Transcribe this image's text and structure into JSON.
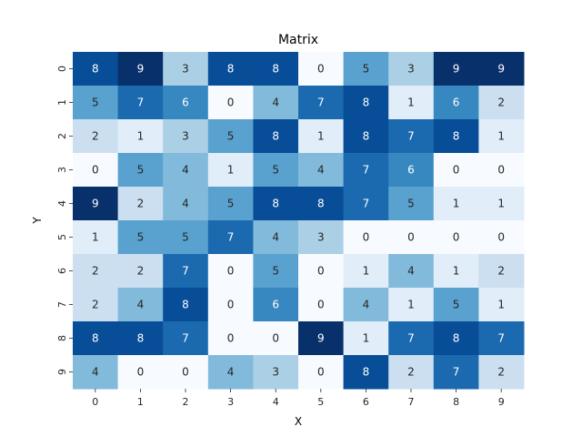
{
  "chart_data": {
    "type": "heatmap",
    "title": "Matrix",
    "xlabel": "X",
    "ylabel": "Y",
    "x_ticks": [
      "0",
      "1",
      "2",
      "3",
      "4",
      "5",
      "6",
      "7",
      "8",
      "9"
    ],
    "y_ticks": [
      "0",
      "1",
      "2",
      "3",
      "4",
      "5",
      "6",
      "7",
      "8",
      "9"
    ],
    "colormap": "Blues",
    "value_range": [
      0,
      9
    ],
    "annotated": true,
    "colorbar": false,
    "values": [
      [
        8,
        9,
        3,
        8,
        8,
        0,
        5,
        3,
        9,
        9
      ],
      [
        5,
        7,
        6,
        0,
        4,
        7,
        8,
        1,
        6,
        2
      ],
      [
        2,
        1,
        3,
        5,
        8,
        1,
        8,
        7,
        8,
        1
      ],
      [
        0,
        5,
        4,
        1,
        5,
        4,
        7,
        6,
        0,
        0
      ],
      [
        9,
        2,
        4,
        5,
        8,
        8,
        7,
        5,
        1,
        1
      ],
      [
        1,
        5,
        5,
        7,
        4,
        3,
        0,
        0,
        0,
        0
      ],
      [
        2,
        2,
        7,
        0,
        5,
        0,
        1,
        4,
        1,
        2
      ],
      [
        2,
        4,
        8,
        0,
        6,
        0,
        4,
        1,
        5,
        1
      ],
      [
        8,
        8,
        7,
        0,
        0,
        9,
        1,
        7,
        8,
        7
      ],
      [
        4,
        0,
        0,
        4,
        3,
        0,
        8,
        2,
        7,
        2
      ]
    ]
  }
}
